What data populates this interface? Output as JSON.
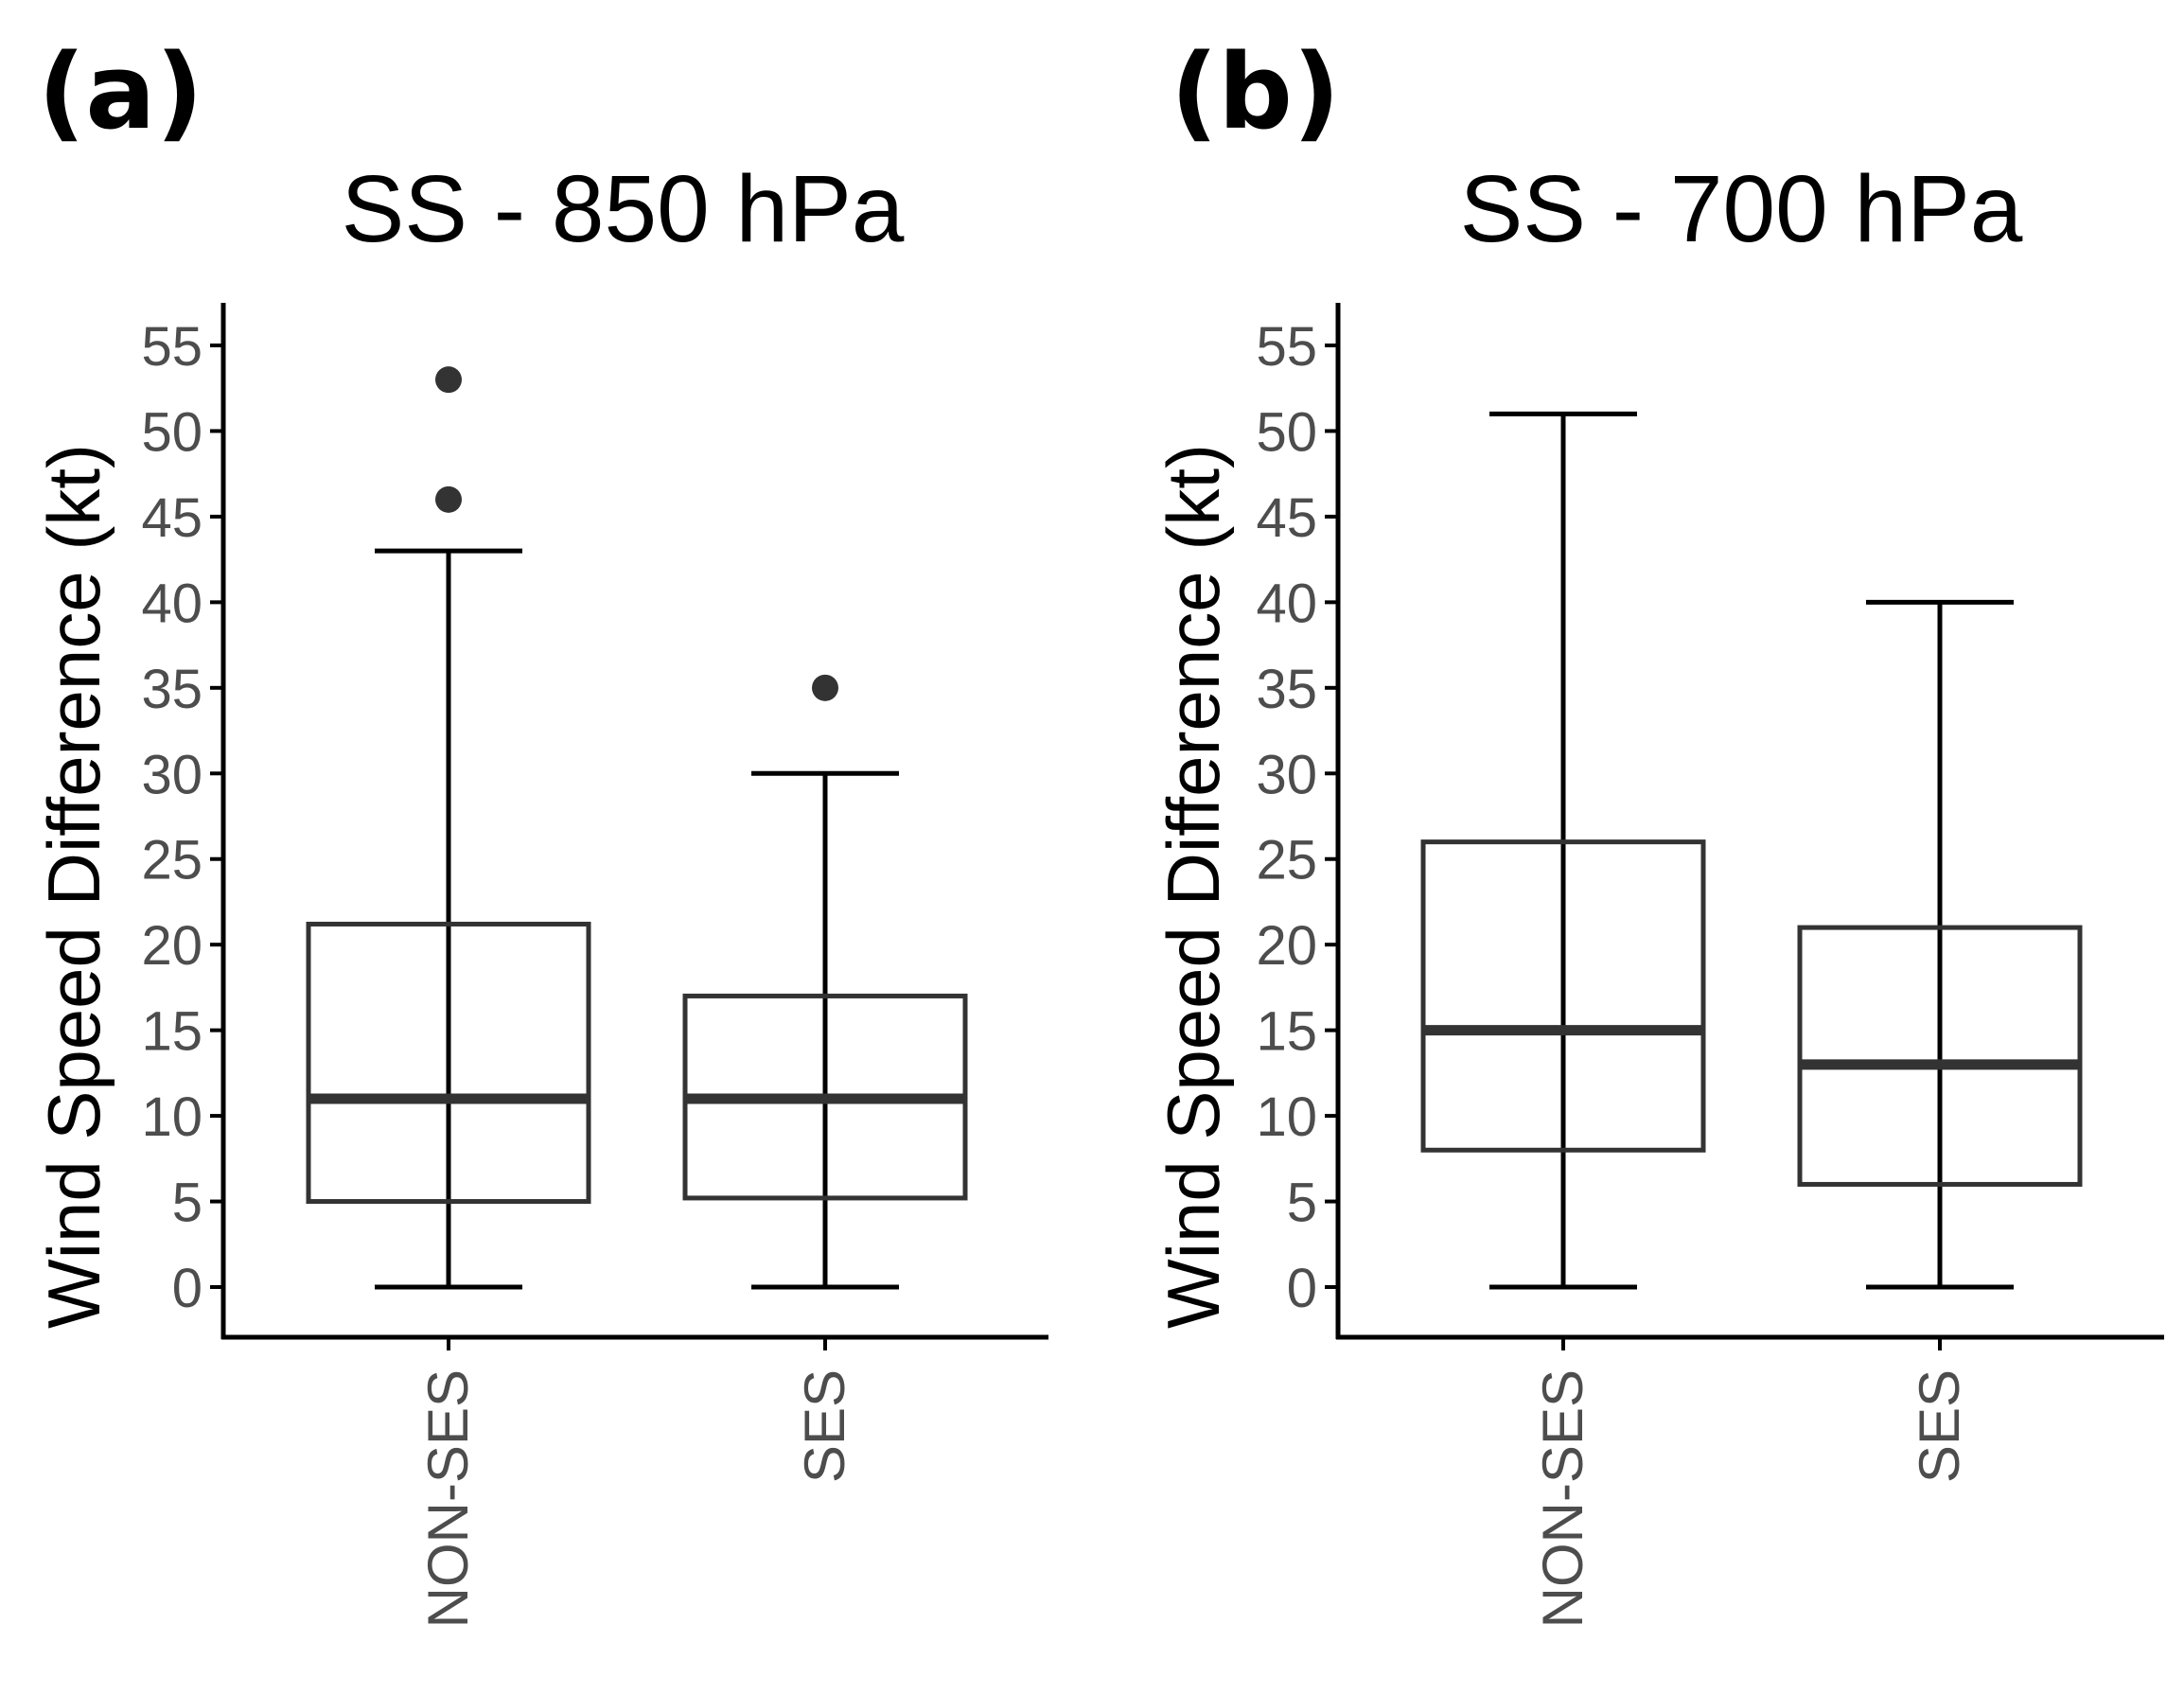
{
  "chart_data": [
    {
      "type": "boxplot",
      "panel_label": "(a)",
      "title": "SS - 850 hPa",
      "ylabel": "Wind Speed Difference (kt)",
      "xlabel": "",
      "ylim": [
        -2.5,
        57.5
      ],
      "yticks": [
        "0",
        "5",
        "10",
        "15",
        "20",
        "25",
        "30",
        "35",
        "40",
        "45",
        "50",
        "55"
      ],
      "categories": [
        "NON-SES",
        "SES"
      ],
      "boxes": [
        {
          "category": "NON-SES",
          "min": 0,
          "q1": 5,
          "median": 11,
          "q3": 21.2,
          "max": 43,
          "outliers": [
            46,
            53
          ]
        },
        {
          "category": "SES",
          "min": 0,
          "q1": 5.2,
          "median": 11,
          "q3": 17,
          "max": 30,
          "outliers": [
            35
          ]
        }
      ]
    },
    {
      "type": "boxplot",
      "panel_label": "(b)",
      "title": "SS - 700 hPa",
      "ylabel": "Wind Speed Difference (kt)",
      "xlabel": "",
      "ylim": [
        -2.5,
        57.5
      ],
      "yticks": [
        "0",
        "5",
        "10",
        "15",
        "20",
        "25",
        "30",
        "35",
        "40",
        "45",
        "50",
        "55"
      ],
      "categories": [
        "NON-SES",
        "SES"
      ],
      "boxes": [
        {
          "category": "NON-SES",
          "min": 0,
          "q1": 8,
          "median": 15,
          "q3": 26,
          "max": 51,
          "outliers": []
        },
        {
          "category": "SES",
          "min": 0,
          "q1": 6,
          "median": 13,
          "q3": 21,
          "max": 40,
          "outliers": []
        }
      ]
    }
  ]
}
